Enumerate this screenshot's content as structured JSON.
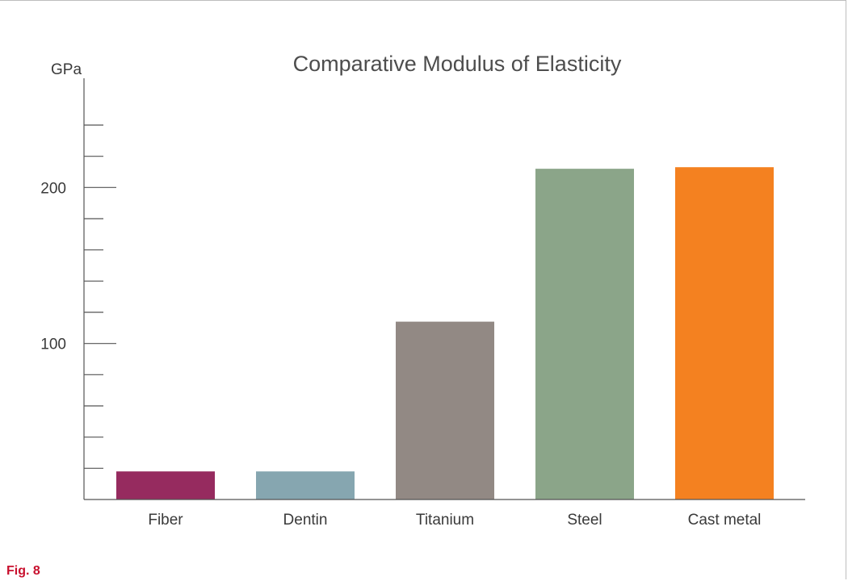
{
  "chart_data": {
    "type": "bar",
    "title": "Comparative Modulus of Elasticity",
    "ylabel": "GPa",
    "xlabel": "",
    "categories": [
      "Fiber",
      "Dentin",
      "Titanium",
      "Steel",
      "Cast metal"
    ],
    "values": [
      18,
      18,
      114,
      212,
      213
    ],
    "colors": [
      "#962b5f",
      "#86a6b0",
      "#928984",
      "#8ba589",
      "#f48120"
    ],
    "ylim": [
      0,
      270
    ],
    "y_tick_step": 20,
    "y_tick_labels": {
      "100": "100",
      "200": "200"
    },
    "grid": false,
    "legend": "none"
  },
  "figure": {
    "label": "Fig. 8"
  }
}
